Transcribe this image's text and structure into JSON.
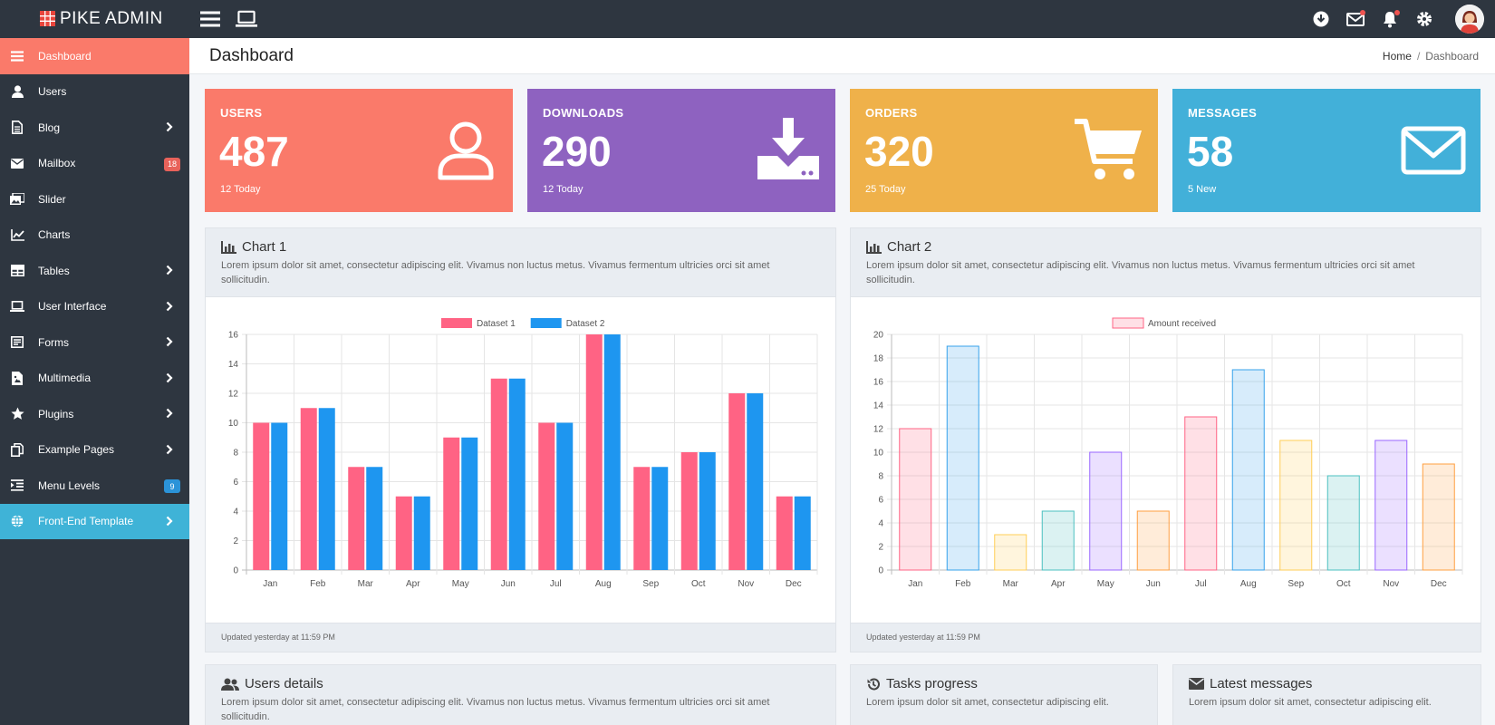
{
  "brand": {
    "name": "PIKE ADMIN"
  },
  "topbar": {
    "left_icons": [
      "menu-icon",
      "laptop-icon"
    ],
    "right_icons": [
      "download-icon",
      "mail-icon",
      "bell-icon",
      "gear-icon"
    ]
  },
  "sidebar": {
    "items": [
      {
        "label": "Dashboard",
        "icon": "bars-icon",
        "chevron": false,
        "badge": ""
      },
      {
        "label": "Users",
        "icon": "user-icon",
        "chevron": false,
        "badge": ""
      },
      {
        "label": "Blog",
        "icon": "file-icon",
        "chevron": true,
        "badge": ""
      },
      {
        "label": "Mailbox",
        "icon": "envelope-icon",
        "chevron": false,
        "badge": "18"
      },
      {
        "label": "Slider",
        "icon": "images-icon",
        "chevron": false,
        "badge": ""
      },
      {
        "label": "Charts",
        "icon": "line-chart-icon",
        "chevron": false,
        "badge": ""
      },
      {
        "label": "Tables",
        "icon": "table-icon",
        "chevron": true,
        "badge": ""
      },
      {
        "label": "User Interface",
        "icon": "laptop-icon",
        "chevron": true,
        "badge": ""
      },
      {
        "label": "Forms",
        "icon": "form-icon",
        "chevron": true,
        "badge": ""
      },
      {
        "label": "Multimedia",
        "icon": "media-file-icon",
        "chevron": true,
        "badge": ""
      },
      {
        "label": "Plugins",
        "icon": "star-icon",
        "chevron": true,
        "badge": ""
      },
      {
        "label": "Example Pages",
        "icon": "copy-icon",
        "chevron": true,
        "badge": ""
      },
      {
        "label": "Menu Levels",
        "icon": "indent-icon",
        "chevron": false,
        "badge": "9"
      },
      {
        "label": "Front-End Template",
        "icon": "globe-icon",
        "chevron": true,
        "badge": ""
      }
    ],
    "badge_colors": {
      "18": "#e8625a",
      "9": "#2b93d8"
    }
  },
  "page": {
    "title": "Dashboard",
    "breadcrumb": {
      "home": "Home",
      "sep": "/",
      "current": "Dashboard"
    }
  },
  "stats": [
    {
      "title": "USERS",
      "value": "487",
      "sub": "12 Today",
      "color": "#fa7a6a",
      "icon": "user-outline-icon"
    },
    {
      "title": "DOWNLOADS",
      "value": "290",
      "sub": "12 Today",
      "color": "#8e62c0",
      "icon": "download-tray-icon"
    },
    {
      "title": "ORDERS",
      "value": "320",
      "sub": "25 Today",
      "color": "#efb14a",
      "icon": "cart-icon"
    },
    {
      "title": "MESSAGES",
      "value": "58",
      "sub": "5 New",
      "color": "#42b0d9",
      "icon": "envelope-outline-icon"
    }
  ],
  "chart1_card": {
    "title": "Chart 1",
    "desc": "Lorem ipsum dolor sit amet, consectetur adipiscing elit. Vivamus non luctus metus. Vivamus fermentum ultricies orci sit amet sollicitudin.",
    "footer": "Updated yesterday at 11:59 PM"
  },
  "chart2_card": {
    "title": "Chart 2",
    "desc": "Lorem ipsum dolor sit amet, consectetur adipiscing elit. Vivamus non luctus metus. Vivamus fermentum ultricies orci sit amet sollicitudin.",
    "footer": "Updated yesterday at 11:59 PM"
  },
  "bottom_cards": [
    {
      "title": "Users details",
      "icon": "users-icon",
      "desc": "Lorem ipsum dolor sit amet, consectetur adipiscing elit. Vivamus non luctus metus. Vivamus fermentum ultricies orci sit amet sollicitudin."
    },
    {
      "title": "Tasks progress",
      "icon": "history-icon",
      "desc": "Lorem ipsum dolor sit amet, consectetur adipiscing elit."
    },
    {
      "title": "Latest messages",
      "icon": "envelope-icon",
      "desc": "Lorem ipsum dolor sit amet, consectetur adipiscing elit."
    }
  ],
  "chart_data": [
    {
      "type": "bar",
      "categories": [
        "Jan",
        "Feb",
        "Mar",
        "Apr",
        "May",
        "Jun",
        "Jul",
        "Aug",
        "Sep",
        "Oct",
        "Nov",
        "Dec"
      ],
      "series": [
        {
          "name": "Dataset 1",
          "values": [
            10,
            11,
            7,
            5,
            9,
            13,
            10,
            16,
            7,
            8,
            12,
            5
          ],
          "color": "#ff6384"
        },
        {
          "name": "Dataset 2",
          "values": [
            10,
            11,
            7,
            5,
            9,
            13,
            10,
            16,
            7,
            8,
            12,
            5
          ],
          "color": "#1e96f0"
        }
      ],
      "ylim": [
        0,
        16
      ],
      "yticks": [
        0,
        2,
        4,
        6,
        8,
        10,
        12,
        14,
        16
      ],
      "grid": true,
      "legend": "top"
    },
    {
      "type": "bar",
      "categories": [
        "Jan",
        "Feb",
        "Mar",
        "Apr",
        "May",
        "Jun",
        "Jul",
        "Aug",
        "Sep",
        "Oct",
        "Nov",
        "Dec"
      ],
      "series": [
        {
          "name": "Amount received",
          "values": [
            12,
            19,
            3,
            5,
            10,
            5,
            13,
            17,
            11,
            8,
            11,
            9
          ]
        }
      ],
      "bar_colors": [
        "#ff6384",
        "#36a2eb",
        "#ffce56",
        "#4bc0c0",
        "#9966ff",
        "#ff9f40",
        "#ff6384",
        "#36a2eb",
        "#ffce56",
        "#4bc0c0",
        "#9966ff",
        "#ff9f40"
      ],
      "ylim": [
        0,
        20
      ],
      "yticks": [
        0,
        2,
        4,
        6,
        8,
        10,
        12,
        14,
        16,
        18,
        20
      ],
      "grid": true,
      "legend": "top"
    }
  ]
}
